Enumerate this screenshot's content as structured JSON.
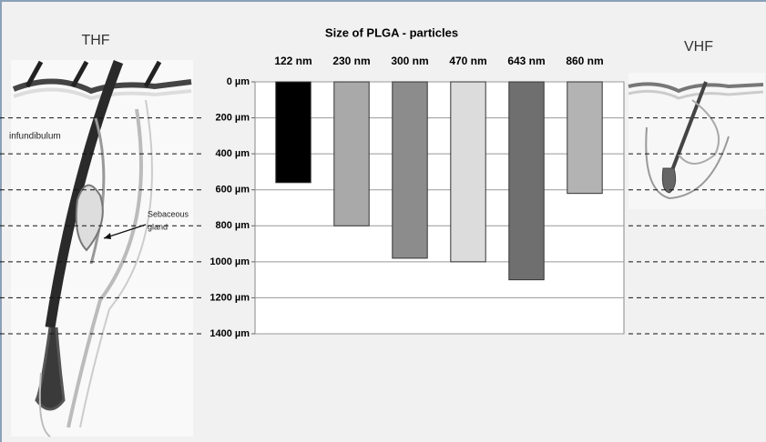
{
  "chart_data": {
    "type": "bar",
    "title": "Size of PLGA - particles",
    "categories": [
      "122 nm",
      "230 nm",
      "300 nm",
      "470 nm",
      "643 nm",
      "860 nm"
    ],
    "values": [
      560,
      800,
      980,
      1000,
      1100,
      620
    ],
    "colors": [
      "#000000",
      "#a9a9a9",
      "#8c8c8c",
      "#dcdcdc",
      "#6f6f6f",
      "#b3b3b3"
    ],
    "ylim": [
      0,
      1400
    ],
    "y_inverted": true,
    "yticks": [
      {
        "value": 0,
        "label": "0 µm"
      },
      {
        "value": 200,
        "label": "200 µm"
      },
      {
        "value": 400,
        "label": "400 µm"
      },
      {
        "value": 600,
        "label": "600 µm"
      },
      {
        "value": 800,
        "label": "800 µm"
      },
      {
        "value": 1000,
        "label": "1000 µm"
      },
      {
        "value": 1200,
        "label": "1200 µm"
      },
      {
        "value": 1400,
        "label": "1400 µm"
      }
    ],
    "grid": true,
    "left_label": "THF",
    "right_label": "VHF",
    "annotations": [
      "infundibulum",
      "Sebaceous",
      "gland"
    ]
  }
}
